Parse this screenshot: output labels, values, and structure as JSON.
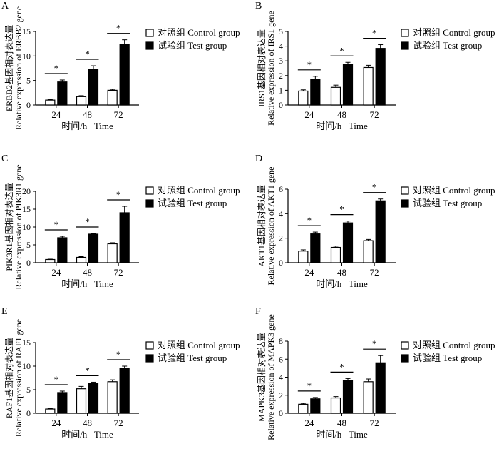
{
  "x_title": "时间/h   Time",
  "legend": {
    "control": "对照组 Control group",
    "test": "试验组 Test group"
  },
  "colors": {
    "control": "#ffffff",
    "test": "#000000",
    "axis": "#000000"
  },
  "chart_data": [
    {
      "panel": "A",
      "type": "bar",
      "categories": [
        "24",
        "48",
        "72"
      ],
      "ylabel_cn": "ERBB2基因相对表达量",
      "ylabel_en": "Relative expression of ERBB2 gene",
      "ylim": [
        0,
        15
      ],
      "yticks": [
        "0",
        "5",
        "10",
        "15"
      ],
      "series": [
        {
          "name": "对照组 Control group",
          "values": [
            1.0,
            1.7,
            3.0
          ],
          "errors": [
            0.15,
            0.2,
            0.2
          ]
        },
        {
          "name": "试验组 Test group",
          "values": [
            4.7,
            7.2,
            12.3
          ],
          "errors": [
            0.4,
            0.8,
            1.0
          ]
        }
      ],
      "significance": [
        "*",
        "*",
        "*"
      ]
    },
    {
      "panel": "B",
      "type": "bar",
      "categories": [
        "24",
        "48",
        "72"
      ],
      "ylabel_cn": "IRS1基因相对表达量",
      "ylabel_en": "Relative expression of IRS1 gene",
      "ylim": [
        0,
        5
      ],
      "yticks": [
        "0",
        "1",
        "2",
        "3",
        "4",
        "5"
      ],
      "series": [
        {
          "name": "对照组 Control group",
          "values": [
            0.95,
            1.2,
            2.55
          ],
          "errors": [
            0.08,
            0.15,
            0.15
          ]
        },
        {
          "name": "试验组 Test group",
          "values": [
            1.75,
            2.75,
            3.85
          ],
          "errors": [
            0.2,
            0.15,
            0.25
          ]
        }
      ],
      "significance": [
        "*",
        "*",
        "*"
      ]
    },
    {
      "panel": "C",
      "type": "bar",
      "categories": [
        "24",
        "48",
        "72"
      ],
      "ylabel_cn": "PIK3R1基因相对表达量",
      "ylabel_en": "Relative expression of PIK3R1 gene",
      "ylim": [
        0,
        20
      ],
      "yticks": [
        "0",
        "5",
        "10",
        "15",
        "20"
      ],
      "series": [
        {
          "name": "对照组 Control group",
          "values": [
            0.9,
            1.5,
            5.3
          ],
          "errors": [
            0.1,
            0.2,
            0.3
          ]
        },
        {
          "name": "试验组 Test group",
          "values": [
            7.0,
            8.0,
            14.0
          ],
          "errors": [
            0.4,
            0.2,
            1.8
          ]
        }
      ],
      "significance": [
        "*",
        "*",
        "*"
      ]
    },
    {
      "panel": "D",
      "type": "bar",
      "categories": [
        "24",
        "48",
        "72"
      ],
      "ylabel_cn": "AKT1基因相对表达量",
      "ylabel_en": "Relative expression of AKT1 gene",
      "ylim": [
        0,
        6
      ],
      "yticks": [
        "0",
        "2",
        "4",
        "6"
      ],
      "series": [
        {
          "name": "对照组 Control group",
          "values": [
            0.95,
            1.25,
            1.8
          ],
          "errors": [
            0.1,
            0.1,
            0.1
          ]
        },
        {
          "name": "试验组 Test group",
          "values": [
            2.35,
            3.25,
            5.05
          ],
          "errors": [
            0.15,
            0.15,
            0.15
          ]
        }
      ],
      "significance": [
        "*",
        "*",
        "*"
      ]
    },
    {
      "panel": "E",
      "type": "bar",
      "categories": [
        "24",
        "48",
        "72"
      ],
      "ylabel_cn": "RAF1基因相对表达量",
      "ylabel_en": "Relative expression of RAF1 gene",
      "ylim": [
        0,
        15
      ],
      "yticks": [
        "0",
        "5",
        "10",
        "15"
      ],
      "series": [
        {
          "name": "对照组 Control group",
          "values": [
            0.9,
            5.2,
            6.7
          ],
          "errors": [
            0.15,
            0.5,
            0.4
          ]
        },
        {
          "name": "试验组 Test group",
          "values": [
            4.4,
            6.4,
            9.6
          ],
          "errors": [
            0.3,
            0.2,
            0.4
          ]
        }
      ],
      "significance": [
        "*",
        "*",
        "*"
      ]
    },
    {
      "panel": "F",
      "type": "bar",
      "categories": [
        "24",
        "48",
        "72"
      ],
      "ylabel_cn": "MAPK3基因相对表达量",
      "ylabel_en": "Relative expression of MAPK3 gene",
      "ylim": [
        0,
        8
      ],
      "yticks": [
        "0",
        "2",
        "4",
        "6",
        "8"
      ],
      "series": [
        {
          "name": "对照组 Control group",
          "values": [
            1.0,
            1.7,
            3.5
          ],
          "errors": [
            0.1,
            0.15,
            0.3
          ]
        },
        {
          "name": "试验组 Test group",
          "values": [
            1.6,
            3.6,
            5.6
          ],
          "errors": [
            0.15,
            0.25,
            0.8
          ]
        }
      ],
      "significance": [
        "*",
        "*",
        "*"
      ]
    }
  ]
}
